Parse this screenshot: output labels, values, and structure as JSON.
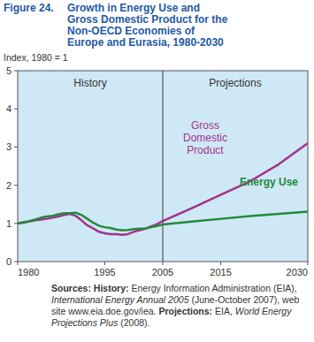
{
  "chart_data": {
    "type": "line",
    "figure_label": "Figure 24.",
    "title": "Growth in Energy Use and Gross Domestic Product for the Non-OECD Economies of Europe and Eurasia, 1980-2030",
    "y_label": "Index, 1980 = 1",
    "x": [
      1980,
      1981,
      1982,
      1983,
      1984,
      1985,
      1986,
      1987,
      1988,
      1989,
      1990,
      1991,
      1992,
      1993,
      1994,
      1995,
      1996,
      1997,
      1998,
      1999,
      2000,
      2001,
      2002,
      2003,
      2004,
      2005,
      2010,
      2015,
      2020,
      2025,
      2030
    ],
    "series": [
      {
        "name": "Gross Domestic Product",
        "color": "#a3338a",
        "values": [
          1.0,
          1.02,
          1.05,
          1.08,
          1.1,
          1.12,
          1.15,
          1.18,
          1.22,
          1.25,
          1.2,
          1.08,
          0.95,
          0.87,
          0.78,
          0.74,
          0.72,
          0.72,
          0.7,
          0.72,
          0.78,
          0.82,
          0.86,
          0.92,
          0.98,
          1.06,
          1.4,
          1.75,
          2.1,
          2.55,
          3.1
        ]
      },
      {
        "name": "Energy Use",
        "color": "#23893a",
        "values": [
          1.0,
          1.03,
          1.06,
          1.1,
          1.15,
          1.18,
          1.2,
          1.24,
          1.27,
          1.27,
          1.28,
          1.22,
          1.12,
          1.02,
          0.94,
          0.9,
          0.88,
          0.84,
          0.82,
          0.83,
          0.85,
          0.86,
          0.87,
          0.9,
          0.93,
          0.97,
          1.05,
          1.12,
          1.19,
          1.25,
          1.31
        ]
      }
    ],
    "xlim": [
      1980,
      2030
    ],
    "xticks": [
      1980,
      1995,
      2005,
      2015,
      2030
    ],
    "ylim": [
      0,
      5
    ],
    "yticks": [
      0,
      1,
      2,
      3,
      4,
      5
    ],
    "grid": false,
    "regions": [
      {
        "label": "History",
        "xlim": [
          1980,
          2005
        ]
      },
      {
        "label": "Projections",
        "xlim": [
          2005,
          2030
        ]
      }
    ],
    "source": [
      {
        "text": "Sources: ",
        "bold": true
      },
      {
        "text": "History: ",
        "bold": true
      },
      {
        "text": "Energy Information Administration (EIA), "
      },
      {
        "text": "International Energy Annual 2005",
        "italic": true
      },
      {
        "text": " (June-October 2007), web site www.eia.doe.gov/iea. "
      },
      {
        "text": "Projections: ",
        "bold": true
      },
      {
        "text": "EIA, "
      },
      {
        "text": "World Energy Projections Plus",
        "italic": true
      },
      {
        "text": " (2008)."
      }
    ]
  }
}
